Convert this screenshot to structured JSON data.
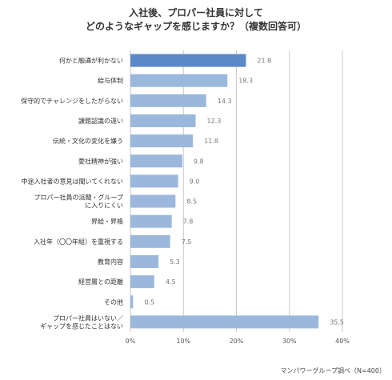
{
  "title_line1": "入社後、プロパー社員に対して",
  "title_line2": "どのようなギャップを感じますか？（複数回答可）",
  "source": "マンパワーグループ調べ（N=400）",
  "colors": {
    "bar": "#9bb8dc",
    "bar_highlight": "#5b88c6",
    "grid": "#c9c9c9",
    "value_text": "#777777",
    "label_text": "#333333"
  },
  "chart_data": {
    "type": "bar",
    "orientation": "horizontal",
    "title": "入社後、プロパー社員に対して どのようなギャップを感じますか？（複数回答可）",
    "xlim": [
      0,
      40
    ],
    "grid": true,
    "unit": "%",
    "categories": [
      "何かと融通が利かない",
      "給与体制",
      "保守的でチャレンジをしたがらない",
      "課題認識の違い",
      "伝統・文化の変化を嫌う",
      "愛社精神が強い",
      "中途入社者の意見は聞いてくれない",
      "プロパー社員の派閥・グループ\nに入りにくい",
      "昇給・昇格",
      "入社年（〇〇年組）を重視する",
      "教育内容",
      "経営層との距離",
      "その他",
      "プロパー社員はいない／\nギャップを感じたことはない"
    ],
    "values": [
      21.8,
      18.3,
      14.3,
      12.3,
      11.8,
      9.8,
      9.0,
      8.5,
      7.8,
      7.5,
      5.3,
      4.5,
      0.5,
      35.5
    ],
    "value_labels": [
      "21.8",
      "18.3",
      "14.3",
      "12.3",
      "11.8",
      "9.8",
      "9.0",
      "8.5",
      "7.8",
      "7.5",
      "5.3",
      "4.5",
      "0.5",
      "35.5"
    ],
    "highlight_index": 0,
    "tick_labels": [
      "0%",
      "10%",
      "20%",
      "30%",
      "40%"
    ]
  }
}
